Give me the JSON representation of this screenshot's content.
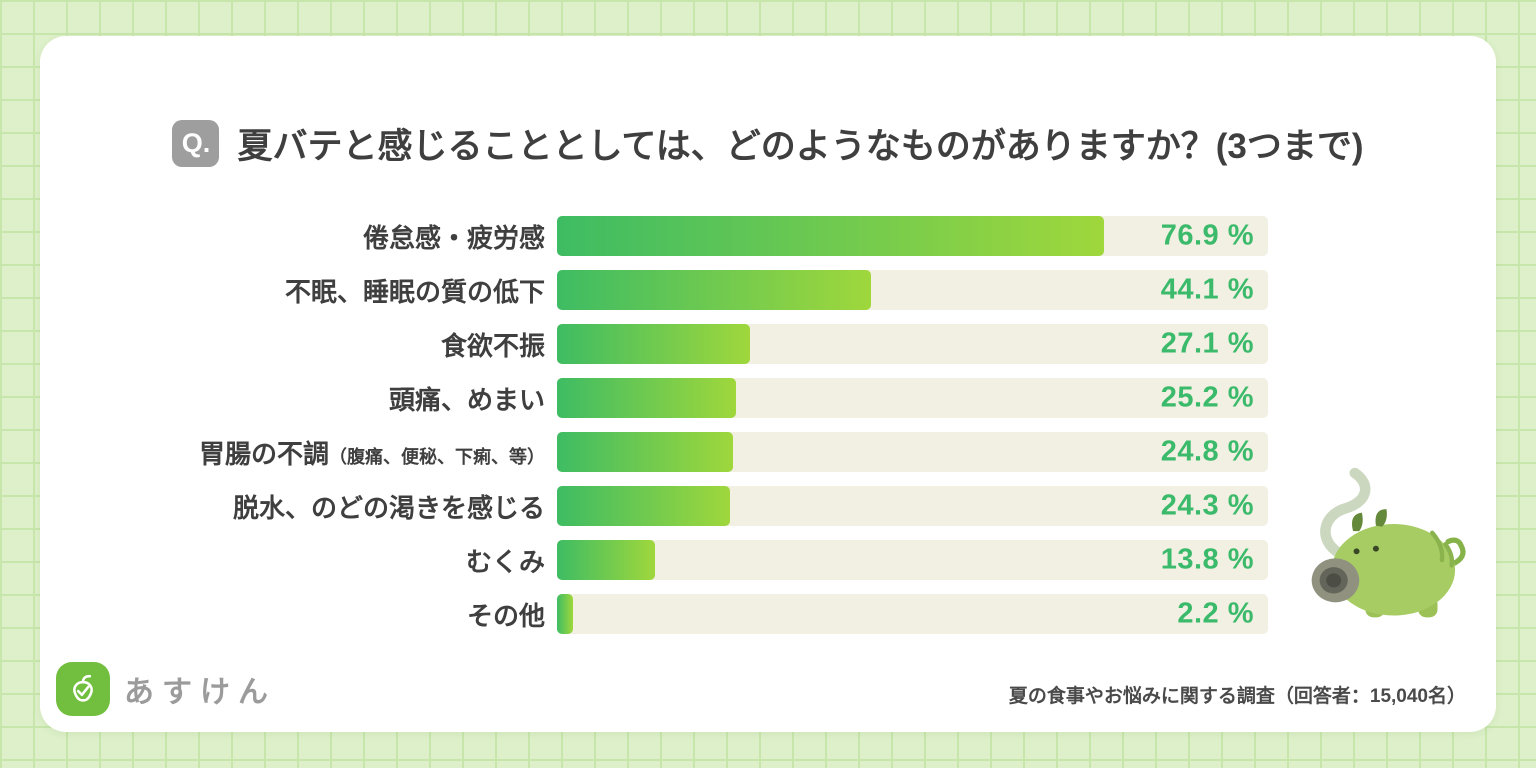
{
  "theme": {
    "page_bg": "#ddf0c9",
    "grid_line": "#c7e6ab",
    "card_bg": "#ffffff",
    "badge_bg": "#9e9e9e",
    "title_color": "#3f3f3f",
    "track": "#f1f0e2",
    "bar_start": "#3ebc63",
    "bar_end": "#9fd73c",
    "value_color": "#3cba6b",
    "brand_green": "#72bf3f",
    "text_gray": "#9b9b9b",
    "source_color": "#4a4a4a"
  },
  "header": {
    "badge": "Q.",
    "title": "夏バテと感じることとしては、どのようなものがありますか？(3つまで)"
  },
  "chart_data": {
    "type": "bar",
    "orientation": "horizontal",
    "title": "夏バテと感じることとしては、どのようなものがありますか？(3つまで)",
    "xlim": [
      0,
      100
    ],
    "grid": false,
    "categories": [
      "倦怠感・疲労感",
      "不眠、睡眠の質の低下",
      "食欲不振",
      "頭痛、めまい",
      "胃腸の不調（腹痛、便秘、下痢、等）",
      "脱水、のどの渇きを感じる",
      "むくみ",
      "その他"
    ],
    "values": [
      76.9,
      44.1,
      27.1,
      25.2,
      24.8,
      24.3,
      13.8,
      2.2
    ],
    "value_labels": [
      "76.9 %",
      "44.1 %",
      "27.1 %",
      "25.2 %",
      "24.8 %",
      "24.3 %",
      "13.8 %",
      "2.2 %"
    ],
    "rows": [
      {
        "label": "倦怠感・疲労感",
        "sub": "",
        "value": 76.9,
        "display": "76.9 %"
      },
      {
        "label": "不眠、睡眠の質の低下",
        "sub": "",
        "value": 44.1,
        "display": "44.1 %"
      },
      {
        "label": "食欲不振",
        "sub": "",
        "value": 27.1,
        "display": "27.1 %"
      },
      {
        "label": "頭痛、めまい",
        "sub": "",
        "value": 25.2,
        "display": "25.2 %"
      },
      {
        "label": "胃腸の不調",
        "sub": "（腹痛、便秘、下痢、等）",
        "value": 24.8,
        "display": "24.8 %"
      },
      {
        "label": "脱水、のどの渇きを感じる",
        "sub": "",
        "value": 24.3,
        "display": "24.3 %"
      },
      {
        "label": "むくみ",
        "sub": "",
        "value": 13.8,
        "display": "13.8 %"
      },
      {
        "label": "その他",
        "sub": "",
        "value": 2.2,
        "display": "2.2 %"
      }
    ]
  },
  "footer": {
    "brand": "あすけん",
    "source": "夏の食事やお悩みに関する調査（回答者：15,040名）"
  }
}
